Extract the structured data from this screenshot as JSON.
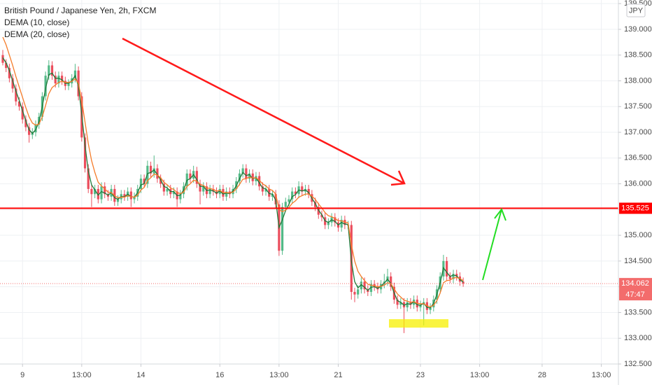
{
  "chart_data": {
    "type": "candlestick",
    "title": "British Pound / Japanese Yen, 2h, FXCM",
    "currency": "JPY",
    "up_color": "#53b987",
    "down_color": "#eb4d5c",
    "xlim": [
      -0.85,
      187.2
    ],
    "xticks": [
      {
        "value": 6,
        "label": "9"
      },
      {
        "value": 24,
        "label": "13:00"
      },
      {
        "value": 42,
        "label": "14"
      },
      {
        "value": 66,
        "label": "16"
      },
      {
        "value": 84,
        "label": "13:00"
      },
      {
        "value": 102,
        "label": "21"
      },
      {
        "value": 127,
        "label": "23"
      },
      {
        "value": 145,
        "label": "13:00"
      },
      {
        "value": 164,
        "label": "28"
      },
      {
        "value": 182,
        "label": "13:00"
      }
    ],
    "ylim": [
      132.5,
      139.57
    ],
    "yticks": [
      {
        "value": 132.5,
        "label": "132.500"
      },
      {
        "value": 133,
        "label": "133.000"
      },
      {
        "value": 133.5,
        "label": "133.500"
      },
      {
        "value": 134,
        "label": "134.000"
      },
      {
        "value": 134.5,
        "label": "134.500"
      },
      {
        "value": 135,
        "label": "135.000"
      },
      {
        "value": 135.5,
        "label": "135.500"
      },
      {
        "value": 136,
        "label": "136.000"
      },
      {
        "value": 136.5,
        "label": "136.500"
      },
      {
        "value": 137,
        "label": "137.000"
      },
      {
        "value": 137.5,
        "label": "137.500"
      },
      {
        "value": 138,
        "label": "138.000"
      },
      {
        "value": 138.5,
        "label": "138.500"
      },
      {
        "value": 139,
        "label": "139.000"
      },
      {
        "value": 139.5,
        "label": "139.500"
      }
    ],
    "level": 135.525,
    "level_color": "#ff0000",
    "last_price": 134.062,
    "countdown": "47:47",
    "last_color": "#f36c6c",
    "ohlc": [
      [
        138.5,
        138.6,
        138.3,
        138.35
      ],
      [
        138.35,
        138.42,
        138.17,
        138.25
      ],
      [
        138.25,
        138.33,
        137.97,
        138.05
      ],
      [
        138.05,
        138.13,
        137.77,
        137.85
      ],
      [
        137.85,
        137.93,
        137.52,
        137.6
      ],
      [
        137.6,
        137.68,
        137.42,
        137.5
      ],
      [
        137.5,
        137.58,
        137.17,
        137.25
      ],
      [
        137.25,
        137.33,
        137.02,
        137.1
      ],
      [
        137.1,
        137.18,
        136.8,
        136.95
      ],
      [
        136.95,
        137.08,
        136.87,
        137.0
      ],
      [
        137.0,
        137.23,
        136.92,
        137.15
      ],
      [
        137.15,
        137.38,
        137.07,
        137.3
      ],
      [
        137.3,
        137.78,
        137.22,
        137.7
      ],
      [
        137.7,
        138.18,
        137.62,
        138.1
      ],
      [
        138.1,
        138.4,
        138.02,
        138.3
      ],
      [
        138.3,
        138.38,
        138.02,
        138.1
      ],
      [
        138.1,
        138.18,
        137.87,
        137.95
      ],
      [
        137.95,
        138.18,
        137.87,
        138.1
      ],
      [
        138.1,
        138.18,
        137.92,
        138.0
      ],
      [
        138.0,
        138.08,
        137.82,
        137.9
      ],
      [
        137.9,
        138.03,
        137.82,
        137.95
      ],
      [
        137.95,
        138.13,
        137.87,
        138.05
      ],
      [
        138.05,
        138.33,
        137.97,
        138.2
      ],
      [
        138.2,
        138.28,
        137.62,
        137.7
      ],
      [
        137.7,
        137.78,
        136.82,
        136.9
      ],
      [
        136.9,
        136.98,
        136.22,
        136.3
      ],
      [
        136.3,
        136.38,
        135.82,
        135.9
      ],
      [
        135.9,
        135.98,
        135.55,
        135.8
      ],
      [
        135.8,
        135.98,
        135.72,
        135.9
      ],
      [
        135.9,
        135.98,
        135.62,
        135.7
      ],
      [
        135.7,
        136.03,
        135.62,
        135.95
      ],
      [
        135.95,
        136.03,
        135.72,
        135.8
      ],
      [
        135.8,
        135.88,
        135.67,
        135.75
      ],
      [
        135.75,
        135.98,
        135.67,
        135.9
      ],
      [
        135.9,
        135.98,
        135.57,
        135.65
      ],
      [
        135.65,
        135.78,
        135.57,
        135.7
      ],
      [
        135.7,
        135.88,
        135.62,
        135.8
      ],
      [
        135.8,
        135.88,
        135.67,
        135.75
      ],
      [
        135.75,
        135.93,
        135.67,
        135.85
      ],
      [
        135.85,
        135.93,
        135.55,
        135.7
      ],
      [
        135.7,
        135.83,
        135.62,
        135.75
      ],
      [
        135.75,
        135.98,
        135.67,
        135.9
      ],
      [
        135.9,
        136.18,
        135.82,
        136.1
      ],
      [
        136.1,
        136.18,
        135.92,
        136.0
      ],
      [
        136.0,
        136.45,
        135.92,
        136.35
      ],
      [
        136.35,
        136.43,
        136.12,
        136.2
      ],
      [
        136.2,
        136.55,
        136.12,
        136.3
      ],
      [
        136.3,
        136.38,
        136.02,
        136.1
      ],
      [
        136.1,
        136.18,
        135.92,
        136.0
      ],
      [
        136.0,
        136.08,
        135.77,
        135.85
      ],
      [
        135.85,
        135.98,
        135.77,
        135.9
      ],
      [
        135.9,
        135.98,
        135.72,
        135.8
      ],
      [
        135.8,
        135.93,
        135.72,
        135.85
      ],
      [
        135.85,
        135.93,
        135.55,
        135.7
      ],
      [
        135.7,
        135.88,
        135.62,
        135.8
      ],
      [
        135.8,
        136.03,
        135.72,
        135.95
      ],
      [
        135.95,
        136.28,
        135.87,
        136.2
      ],
      [
        136.2,
        136.28,
        136.02,
        136.1
      ],
      [
        136.1,
        136.35,
        136.02,
        136.25
      ],
      [
        136.25,
        136.33,
        135.92,
        136.0
      ],
      [
        136.0,
        136.08,
        135.6,
        135.85
      ],
      [
        135.85,
        136.03,
        135.77,
        135.95
      ],
      [
        135.95,
        136.03,
        135.72,
        135.8
      ],
      [
        135.8,
        135.98,
        135.72,
        135.9
      ],
      [
        135.9,
        135.98,
        135.77,
        135.85
      ],
      [
        135.85,
        135.93,
        135.72,
        135.8
      ],
      [
        135.8,
        135.98,
        135.72,
        135.9
      ],
      [
        135.9,
        135.98,
        135.67,
        135.75
      ],
      [
        135.75,
        135.93,
        135.67,
        135.85
      ],
      [
        135.85,
        135.93,
        135.72,
        135.8
      ],
      [
        135.8,
        135.98,
        135.72,
        135.9
      ],
      [
        135.9,
        136.13,
        135.82,
        136.05
      ],
      [
        136.05,
        136.28,
        135.97,
        136.2
      ],
      [
        136.2,
        136.38,
        136.12,
        136.3
      ],
      [
        136.3,
        136.38,
        136.02,
        136.1
      ],
      [
        136.1,
        136.28,
        136.02,
        136.2
      ],
      [
        136.2,
        136.28,
        135.97,
        136.05
      ],
      [
        136.05,
        136.23,
        135.97,
        136.15
      ],
      [
        136.15,
        136.23,
        135.87,
        135.95
      ],
      [
        135.95,
        136.03,
        135.77,
        135.85
      ],
      [
        135.85,
        135.98,
        135.77,
        135.9
      ],
      [
        135.9,
        135.98,
        135.67,
        135.75
      ],
      [
        135.75,
        135.88,
        135.67,
        135.8
      ],
      [
        135.8,
        135.88,
        135.52,
        135.6
      ],
      [
        135.6,
        135.68,
        134.6,
        134.7
      ],
      [
        134.7,
        135.63,
        134.62,
        135.55
      ],
      [
        135.55,
        135.73,
        135.47,
        135.65
      ],
      [
        135.65,
        135.78,
        135.57,
        135.7
      ],
      [
        135.7,
        135.93,
        135.62,
        135.85
      ],
      [
        135.85,
        135.93,
        135.72,
        135.8
      ],
      [
        135.8,
        136.05,
        135.72,
        135.95
      ],
      [
        135.95,
        136.03,
        135.77,
        135.85
      ],
      [
        135.85,
        135.98,
        135.77,
        135.9
      ],
      [
        135.9,
        135.98,
        135.72,
        135.8
      ],
      [
        135.8,
        135.88,
        135.57,
        135.65
      ],
      [
        135.65,
        135.73,
        135.47,
        135.55
      ],
      [
        135.55,
        135.63,
        135.32,
        135.4
      ],
      [
        135.4,
        135.48,
        135.27,
        135.35
      ],
      [
        135.35,
        135.43,
        135.12,
        135.2
      ],
      [
        135.2,
        135.33,
        135.12,
        135.25
      ],
      [
        135.25,
        135.43,
        135.17,
        135.35
      ],
      [
        135.35,
        135.43,
        135.17,
        135.25
      ],
      [
        135.25,
        135.33,
        135.07,
        135.15
      ],
      [
        135.15,
        135.38,
        135.07,
        135.3
      ],
      [
        135.3,
        135.38,
        135.12,
        135.2
      ],
      [
        135.2,
        135.28,
        135.12,
        135.2
      ],
      [
        135.2,
        135.28,
        133.75,
        133.9
      ],
      [
        133.9,
        133.98,
        133.7,
        133.85
      ],
      [
        133.85,
        134.03,
        133.77,
        133.95
      ],
      [
        133.95,
        134.18,
        133.87,
        134.1
      ],
      [
        134.1,
        134.18,
        133.87,
        133.95
      ],
      [
        133.95,
        134.03,
        133.82,
        133.9
      ],
      [
        133.9,
        134.13,
        133.82,
        134.05
      ],
      [
        134.05,
        134.13,
        133.92,
        134.0
      ],
      [
        134.0,
        134.08,
        133.87,
        133.95
      ],
      [
        133.95,
        134.13,
        133.87,
        134.05
      ],
      [
        134.05,
        134.25,
        133.97,
        134.1
      ],
      [
        134.1,
        134.35,
        134.02,
        134.2
      ],
      [
        134.2,
        134.28,
        133.92,
        134.0
      ],
      [
        134.0,
        134.08,
        133.67,
        133.75
      ],
      [
        133.75,
        133.83,
        133.57,
        133.65
      ],
      [
        133.65,
        133.78,
        133.57,
        133.7
      ],
      [
        133.7,
        133.78,
        133.1,
        133.6
      ],
      [
        133.6,
        133.78,
        133.52,
        133.7
      ],
      [
        133.7,
        133.78,
        133.57,
        133.65
      ],
      [
        133.65,
        133.83,
        133.57,
        133.75
      ],
      [
        133.75,
        133.83,
        133.52,
        133.6
      ],
      [
        133.6,
        133.73,
        133.52,
        133.65
      ],
      [
        133.65,
        133.78,
        133.25,
        133.7
      ],
      [
        133.7,
        133.78,
        133.47,
        133.55
      ],
      [
        133.55,
        133.68,
        133.47,
        133.6
      ],
      [
        133.6,
        133.83,
        133.52,
        133.75
      ],
      [
        133.75,
        134.03,
        133.67,
        133.95
      ],
      [
        133.95,
        134.28,
        133.87,
        134.2
      ],
      [
        134.2,
        134.62,
        134.12,
        134.5
      ],
      [
        134.5,
        134.58,
        134.12,
        134.2
      ],
      [
        134.2,
        134.28,
        134.07,
        134.15
      ],
      [
        134.15,
        134.33,
        134.07,
        134.25
      ],
      [
        134.25,
        134.33,
        134.12,
        134.2
      ],
      [
        134.2,
        134.28,
        134.02,
        134.1
      ],
      [
        134.1,
        134.18,
        134.0,
        134.062
      ]
    ],
    "series": [
      {
        "name": "DEMA (10, close)",
        "color": "#1f7a3a",
        "values": [
          138.45,
          138.35,
          138.2,
          138.0,
          137.8,
          137.62,
          137.42,
          137.22,
          137.05,
          136.98,
          137.05,
          137.2,
          137.5,
          137.85,
          138.12,
          138.15,
          138.05,
          138.05,
          138.02,
          137.95,
          137.95,
          138.0,
          138.1,
          137.9,
          137.35,
          136.75,
          136.25,
          135.98,
          135.88,
          135.78,
          135.85,
          135.82,
          135.78,
          135.83,
          135.73,
          135.7,
          135.75,
          135.75,
          135.8,
          135.75,
          135.74,
          135.83,
          135.98,
          136.0,
          136.2,
          136.22,
          136.27,
          136.18,
          136.08,
          135.95,
          135.92,
          135.85,
          135.85,
          135.77,
          135.78,
          135.88,
          136.07,
          136.1,
          136.18,
          136.08,
          135.95,
          135.95,
          135.87,
          135.88,
          135.86,
          135.82,
          135.86,
          135.8,
          135.82,
          135.81,
          135.86,
          135.96,
          136.1,
          136.22,
          136.16,
          136.18,
          136.1,
          136.12,
          136.02,
          135.92,
          135.9,
          135.81,
          135.8,
          135.68,
          135.15,
          135.3,
          135.48,
          135.6,
          135.75,
          135.79,
          135.88,
          135.86,
          135.88,
          135.83,
          135.72,
          135.62,
          135.49,
          135.4,
          135.28,
          135.25,
          135.3,
          135.27,
          135.2,
          135.25,
          135.22,
          135.21,
          134.5,
          134.1,
          133.98,
          134.04,
          133.99,
          133.93,
          133.99,
          134.0,
          133.97,
          134.01,
          134.07,
          134.15,
          134.06,
          133.88,
          133.73,
          133.7,
          133.64,
          133.67,
          133.66,
          133.71,
          133.65,
          133.64,
          133.68,
          133.6,
          133.59,
          133.68,
          133.85,
          134.08,
          134.37,
          134.28,
          134.2,
          134.23,
          134.21,
          134.14,
          134.09
        ]
      },
      {
        "name": "DEMA (20, close)",
        "color": "#f57c2a",
        "values": [
          138.85,
          138.7,
          138.5,
          138.3,
          138.08,
          137.88,
          137.68,
          137.48,
          137.3,
          137.18,
          137.14,
          137.16,
          137.3,
          137.52,
          137.75,
          137.87,
          137.92,
          137.97,
          137.99,
          137.97,
          137.97,
          137.99,
          138.04,
          137.95,
          137.62,
          137.2,
          136.78,
          136.45,
          136.22,
          136.03,
          135.96,
          135.9,
          135.84,
          135.83,
          135.77,
          135.73,
          135.74,
          135.74,
          135.77,
          135.75,
          135.74,
          135.78,
          135.88,
          135.93,
          136.06,
          136.12,
          136.19,
          136.17,
          136.12,
          136.03,
          135.98,
          135.92,
          135.89,
          135.83,
          135.81,
          135.84,
          135.95,
          136.0,
          136.07,
          136.05,
          135.99,
          135.97,
          135.92,
          135.91,
          135.89,
          135.86,
          135.87,
          135.83,
          135.83,
          135.82,
          135.84,
          135.9,
          135.99,
          136.09,
          136.1,
          136.13,
          136.11,
          136.12,
          136.07,
          136.0,
          135.96,
          135.9,
          135.87,
          135.8,
          135.5,
          135.46,
          135.49,
          135.54,
          135.62,
          135.67,
          135.74,
          135.77,
          135.8,
          135.8,
          135.76,
          135.7,
          135.61,
          135.53,
          135.44,
          135.38,
          135.36,
          135.33,
          135.28,
          135.28,
          135.26,
          135.24,
          134.82,
          134.5,
          134.3,
          134.2,
          134.12,
          134.05,
          134.03,
          134.02,
          134.0,
          134.01,
          134.03,
          134.08,
          134.06,
          133.96,
          133.86,
          133.8,
          133.74,
          133.72,
          133.7,
          133.71,
          133.68,
          133.67,
          133.67,
          133.63,
          133.61,
          133.64,
          133.73,
          133.88,
          134.08,
          134.12,
          134.13,
          134.17,
          134.18,
          134.16,
          134.12
        ]
      }
    ]
  }
}
